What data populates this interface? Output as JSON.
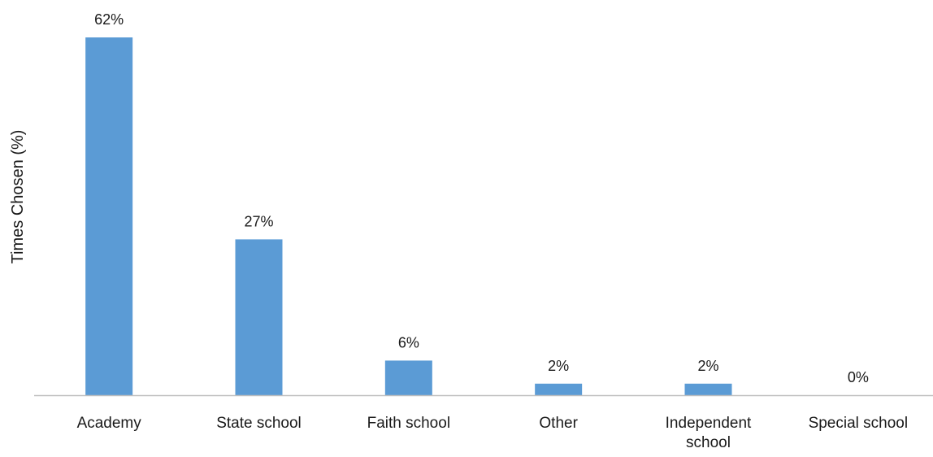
{
  "chart_data": {
    "type": "bar",
    "categories": [
      [
        "Academy"
      ],
      [
        "State school"
      ],
      [
        "Faith school"
      ],
      [
        "Other"
      ],
      [
        "Independent",
        "school"
      ],
      [
        "Special school"
      ]
    ],
    "values": [
      62,
      27,
      6,
      2,
      2,
      0
    ],
    "data_labels": [
      "62%",
      "27%",
      "6%",
      "2%",
      "2%",
      "0%"
    ],
    "ylabel": "Times Chosen (%)",
    "xlabel": "",
    "ylim": [
      0,
      62
    ],
    "grid": false,
    "legend": "none",
    "colors": {
      "bar": "#5b9bd5",
      "axis": "#bfbfbf"
    }
  }
}
